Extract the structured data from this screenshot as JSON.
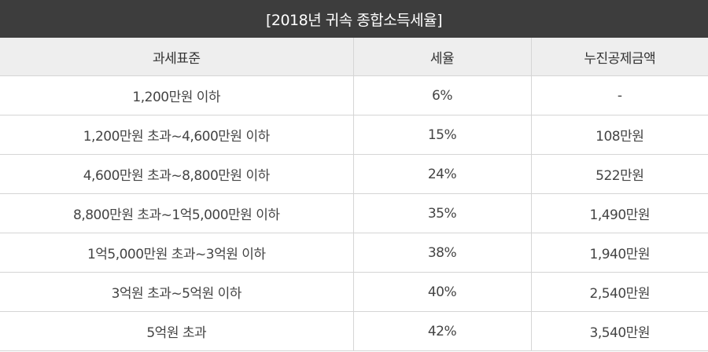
{
  "title": "[2018년 귀속 종합소득세율]",
  "headers": [
    "과세표준",
    "세율",
    "누진공제금액"
  ],
  "rows": [
    {
      "bracket": "1,200만원 이하",
      "rate": "6%",
      "deduction": "-"
    },
    {
      "bracket": "1,200만원 초과~4,600만원 이하",
      "rate": "15%",
      "deduction": "108만원"
    },
    {
      "bracket": "4,600만원 초과~8,800만원 이하",
      "rate": "24%",
      "deduction": "522만원"
    },
    {
      "bracket": "8,800만원 초과~1억5,000만원 이하",
      "rate": "35%",
      "deduction": "1,490만원"
    },
    {
      "bracket": "1억5,000만원 초과~3억원 이하",
      "rate": "38%",
      "deduction": "1,940만원"
    },
    {
      "bracket": "3억원 초과~5억원 이하",
      "rate": "40%",
      "deduction": "2,540만원"
    },
    {
      "bracket": "5억원 초과",
      "rate": "42%",
      "deduction": "3,540만원"
    }
  ],
  "colors": {
    "title_bg": "#3d3d3d",
    "header_bg": "#eeeeee",
    "border": "#d5d5d5",
    "text": "#444444"
  }
}
